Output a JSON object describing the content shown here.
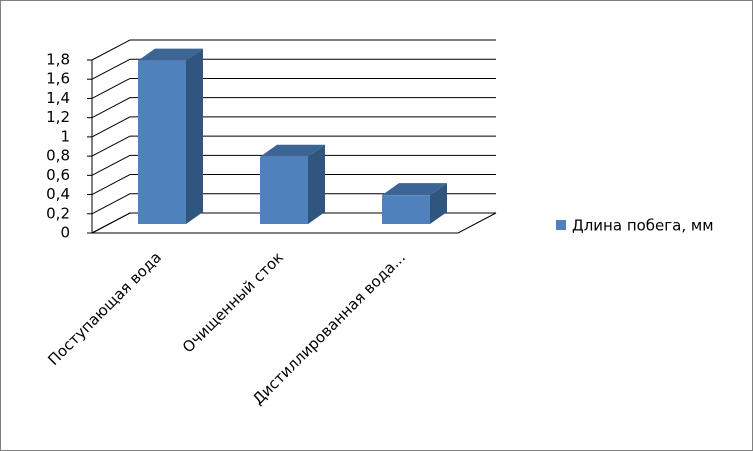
{
  "chart_data": {
    "type": "bar3d",
    "categories": [
      "Поступающая вода",
      "Очищенный сток",
      "Дистиллированная вода..."
    ],
    "series": [
      {
        "name": "Длина побега, мм",
        "color": "#4f81bd",
        "values": [
          1.7,
          0.7,
          0.3
        ]
      }
    ],
    "ylim": [
      0,
      1.8
    ],
    "yticks": [
      0,
      {
        "value": 0.2,
        "label": "0,2"
      },
      {
        "value": 0.4,
        "label": "0,4"
      },
      {
        "value": 0.6,
        "label": "0,6"
      },
      {
        "value": 0.8,
        "label": "0,8"
      },
      1,
      {
        "value": 1.2,
        "label": "1,2"
      },
      {
        "value": 1.4,
        "label": "1,4"
      },
      {
        "value": 1.6,
        "label": "1,6"
      },
      {
        "value": 1.8,
        "label": "1,8"
      }
    ],
    "grid": true,
    "legend": "right"
  }
}
